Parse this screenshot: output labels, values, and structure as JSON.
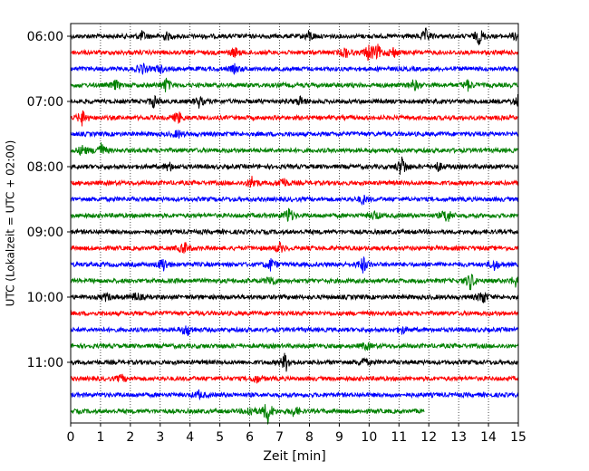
{
  "chart_data": {
    "type": "line",
    "title": "",
    "xlabel": "Zeit  [min]",
    "ylabel": "UTC (Lokalzeit = UTC + 02:00)",
    "xlim": [
      0,
      15
    ],
    "xticks": [
      0,
      1,
      2,
      3,
      4,
      5,
      6,
      7,
      8,
      9,
      10,
      11,
      12,
      13,
      14,
      15
    ],
    "y_tick_labels": [
      "06:00",
      "07:00",
      "08:00",
      "09:00",
      "10:00",
      "11:00"
    ],
    "y_tick_times": [
      "06:00",
      "07:00",
      "08:00",
      "09:00",
      "10:00",
      "11:00"
    ],
    "trace_interval_min": 15,
    "grid": "vertical dotted",
    "colors_cycle": [
      "#000000",
      "#ff0000",
      "#0000ff",
      "#008000"
    ],
    "series": [
      {
        "start": "06:00",
        "color": "#000000",
        "end_min": 15,
        "events": [
          [
            2.4,
            5
          ],
          [
            3.2,
            4
          ],
          [
            8.0,
            6
          ],
          [
            11.9,
            7
          ],
          [
            13.7,
            9
          ],
          [
            15.0,
            10
          ]
        ]
      },
      {
        "start": "06:15",
        "color": "#ff0000",
        "end_min": 15,
        "events": [
          [
            5.5,
            5
          ],
          [
            9.2,
            6
          ],
          [
            10.0,
            10
          ],
          [
            10.3,
            7
          ],
          [
            10.8,
            6
          ]
        ]
      },
      {
        "start": "06:30",
        "color": "#0000ff",
        "end_min": 15,
        "events": [
          [
            2.4,
            6
          ],
          [
            3.0,
            4
          ],
          [
            5.5,
            4
          ]
        ]
      },
      {
        "start": "06:45",
        "color": "#008000",
        "end_min": 15,
        "events": [
          [
            1.5,
            5
          ],
          [
            3.2,
            8
          ],
          [
            11.5,
            6
          ],
          [
            13.3,
            6
          ]
        ]
      },
      {
        "start": "07:00",
        "color": "#000000",
        "end_min": 15,
        "events": [
          [
            2.8,
            7
          ],
          [
            4.3,
            6
          ],
          [
            7.7,
            5
          ],
          [
            15.0,
            7
          ]
        ]
      },
      {
        "start": "07:15",
        "color": "#ff0000",
        "end_min": 15,
        "events": [
          [
            0.4,
            9
          ],
          [
            3.6,
            7
          ]
        ]
      },
      {
        "start": "07:30",
        "color": "#0000ff",
        "end_min": 15,
        "events": [
          [
            3.6,
            4
          ]
        ]
      },
      {
        "start": "07:45",
        "color": "#008000",
        "end_min": 15,
        "events": [
          [
            1.0,
            9
          ],
          [
            0.4,
            6
          ]
        ]
      },
      {
        "start": "08:00",
        "color": "#000000",
        "end_min": 15,
        "events": [
          [
            3.3,
            5
          ],
          [
            11.1,
            12
          ],
          [
            12.3,
            5
          ]
        ]
      },
      {
        "start": "08:15",
        "color": "#ff0000",
        "end_min": 15,
        "events": [
          [
            6.1,
            8
          ],
          [
            7.1,
            7
          ]
        ]
      },
      {
        "start": "08:30",
        "color": "#0000ff",
        "end_min": 15,
        "events": [
          [
            9.8,
            5
          ]
        ]
      },
      {
        "start": "08:45",
        "color": "#008000",
        "end_min": 15,
        "events": [
          [
            7.3,
            9
          ],
          [
            10.2,
            5
          ],
          [
            12.6,
            9
          ]
        ]
      },
      {
        "start": "09:00",
        "color": "#000000",
        "end_min": 15,
        "events": []
      },
      {
        "start": "09:15",
        "color": "#ff0000",
        "end_min": 15,
        "events": [
          [
            3.8,
            7
          ],
          [
            7.0,
            5
          ]
        ]
      },
      {
        "start": "09:30",
        "color": "#0000ff",
        "end_min": 15,
        "events": [
          [
            3.1,
            8
          ],
          [
            6.7,
            7
          ],
          [
            9.8,
            9
          ],
          [
            14.2,
            6
          ]
        ]
      },
      {
        "start": "09:45",
        "color": "#008000",
        "end_min": 15,
        "events": [
          [
            6.7,
            6
          ],
          [
            13.4,
            10
          ],
          [
            14.9,
            6
          ]
        ]
      },
      {
        "start": "10:00",
        "color": "#000000",
        "end_min": 15,
        "events": [
          [
            1.2,
            4
          ],
          [
            2.2,
            5
          ],
          [
            13.8,
            8
          ]
        ]
      },
      {
        "start": "10:15",
        "color": "#ff0000",
        "end_min": 15,
        "events": []
      },
      {
        "start": "10:30",
        "color": "#0000ff",
        "end_min": 15,
        "events": [
          [
            3.9,
            7
          ],
          [
            11.1,
            4
          ]
        ]
      },
      {
        "start": "10:45",
        "color": "#008000",
        "end_min": 15,
        "events": [
          [
            9.9,
            4
          ]
        ]
      },
      {
        "start": "11:00",
        "color": "#000000",
        "end_min": 15,
        "events": [
          [
            7.2,
            11
          ],
          [
            9.8,
            5
          ]
        ]
      },
      {
        "start": "11:15",
        "color": "#ff0000",
        "end_min": 15,
        "events": [
          [
            6.2,
            5
          ],
          [
            1.7,
            4
          ]
        ]
      },
      {
        "start": "11:30",
        "color": "#0000ff",
        "end_min": 15,
        "events": [
          [
            4.3,
            4
          ]
        ]
      },
      {
        "start": "11:45",
        "color": "#008000",
        "end_min": 11.85,
        "events": [
          [
            6.6,
            14
          ],
          [
            6.0,
            6
          ],
          [
            7.5,
            6
          ]
        ]
      }
    ]
  }
}
